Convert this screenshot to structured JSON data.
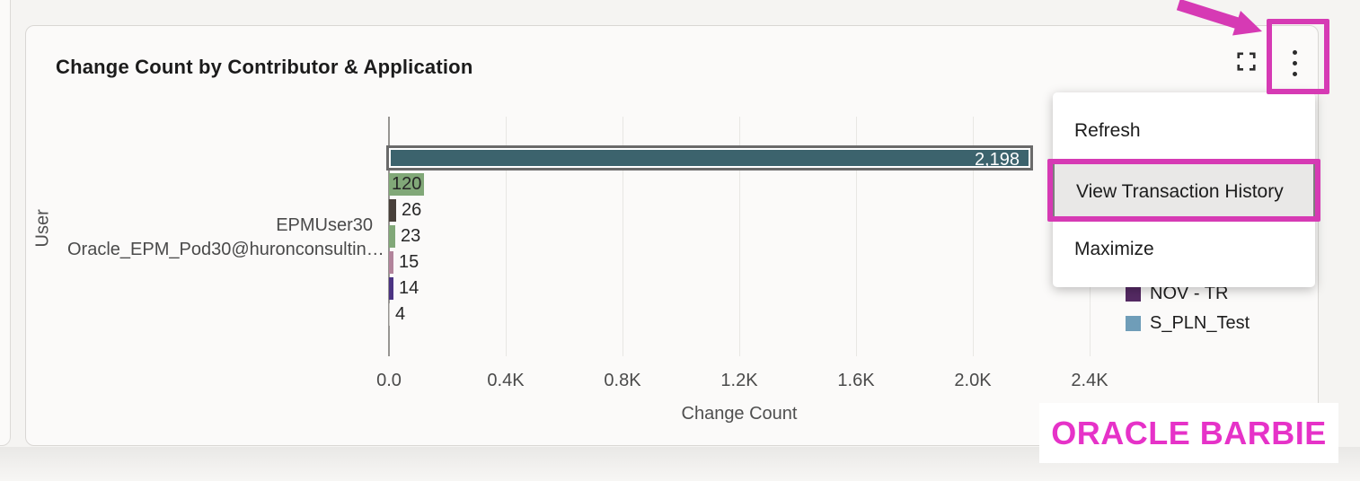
{
  "card": {
    "title": "Change Count by Contributor & Application"
  },
  "toolbar": {
    "icons": [
      "expand-icon",
      "kebab-menu-icon"
    ]
  },
  "menu": {
    "items": [
      {
        "label": "Refresh",
        "highlighted": false
      },
      {
        "label": "View Transaction History",
        "highlighted": true
      },
      {
        "label": "Maximize",
        "highlighted": false
      }
    ]
  },
  "chart_data": {
    "type": "bar",
    "orientation": "horizontal",
    "xlabel": "Change Count",
    "ylabel": "User",
    "xlim": [
      0,
      2400
    ],
    "x_ticks": [
      "0.0",
      "0.4K",
      "0.8K",
      "1.2K",
      "1.6K",
      "2.0K",
      "2.4K"
    ],
    "grid": true,
    "legend_position": "right",
    "categories": [
      "EPMUser30",
      "Oracle_EPM_Pod30@huronconsultin…"
    ],
    "bars": [
      {
        "value": 2198,
        "label": "2,198",
        "color": "#3c636d",
        "selected": true,
        "label_pos": "inside-right"
      },
      {
        "value": 120,
        "label": "120",
        "color": "#81a878",
        "selected": false,
        "label_pos": "inside-left"
      },
      {
        "value": 26,
        "label": "26",
        "color": "#48403a",
        "selected": false,
        "label_pos": "outside"
      },
      {
        "value": 23,
        "label": "23",
        "color": "#81a878",
        "selected": false,
        "label_pos": "outside"
      },
      {
        "value": 15,
        "label": "15",
        "color": "#b2849b",
        "selected": false,
        "label_pos": "outside"
      },
      {
        "value": 14,
        "label": "14",
        "color": "#4b3382",
        "selected": false,
        "label_pos": "outside"
      },
      {
        "value": 4,
        "label": "4",
        "color": "#c9c7c4",
        "selected": false,
        "label_pos": "outside"
      }
    ],
    "legend": [
      {
        "label": "NOV - TR",
        "color": "#542a63"
      },
      {
        "label": "S_PLN_Test",
        "color": "#6f9db8"
      }
    ]
  },
  "annotations": {
    "highlight_color": "#d63ab4",
    "badge_text": "ORACLE BARBIE",
    "badge_text_color": "#e632c8"
  }
}
